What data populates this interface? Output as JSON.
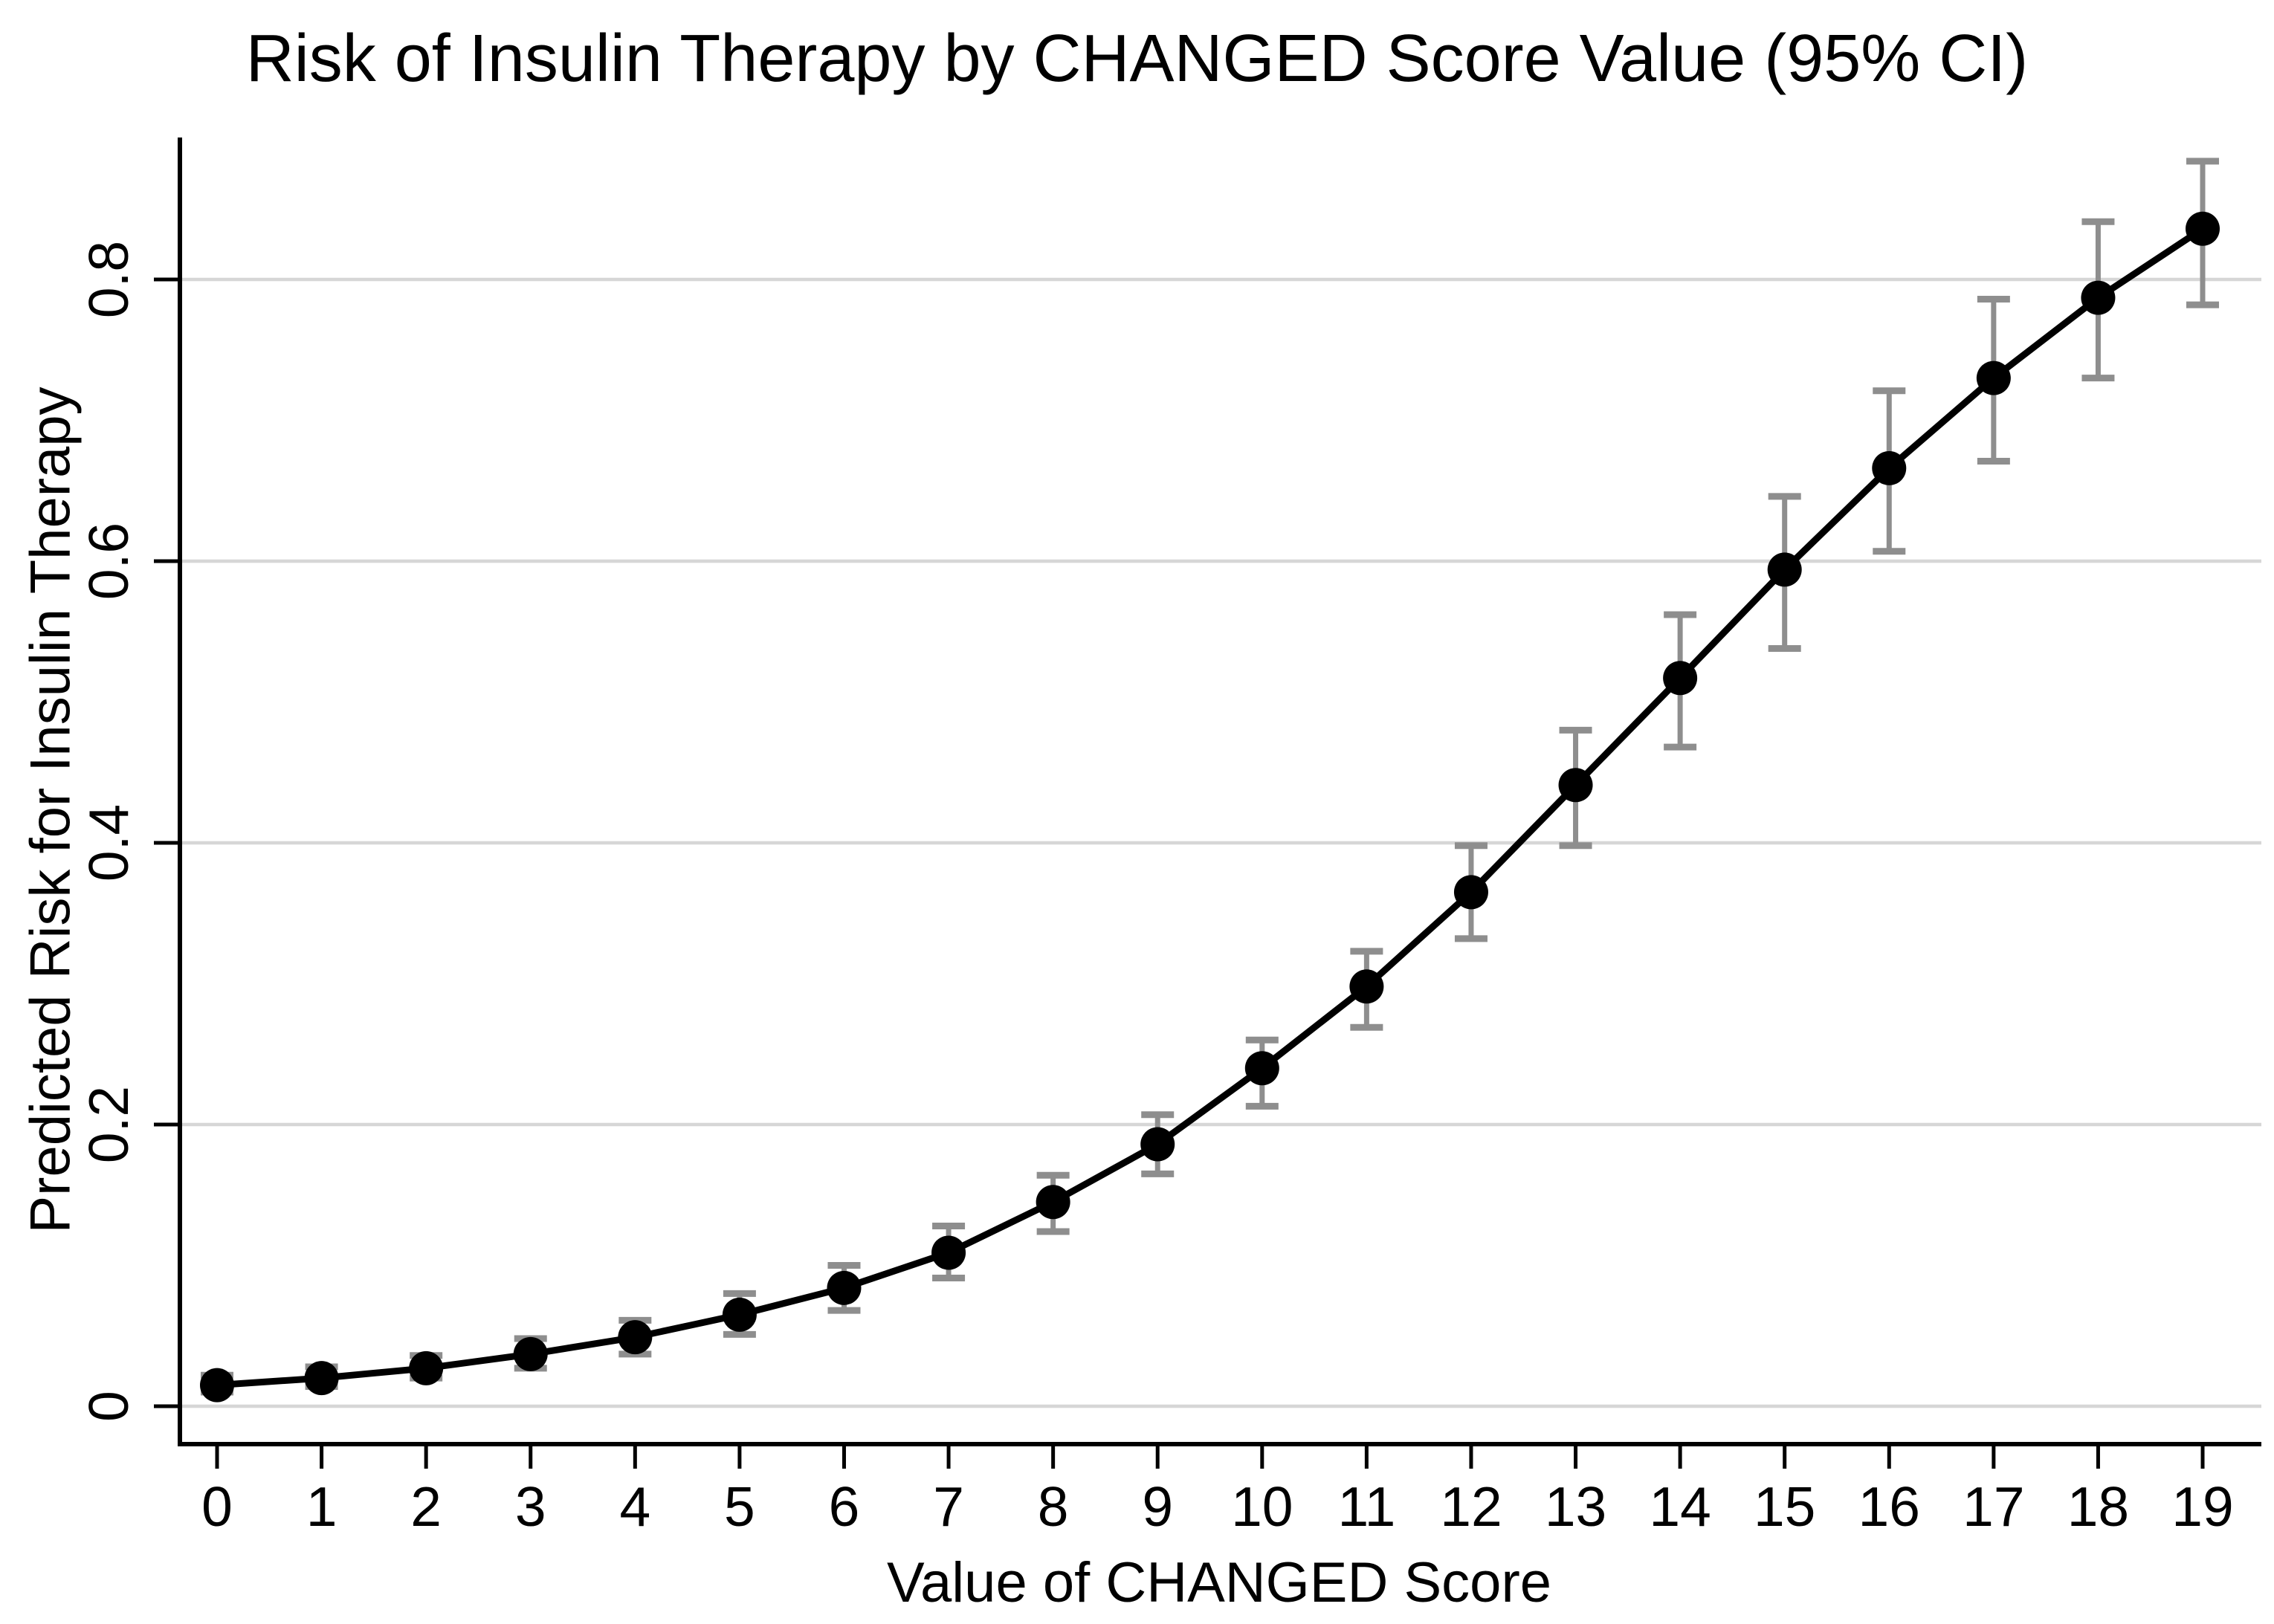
{
  "figure": {
    "title": "Risk of Insulin Therapy by CHANGED Score Value (95% CI)",
    "x_axis_label": "Value of CHANGED Score",
    "y_axis_label": "Predicted Risk for Insulin Therapy"
  },
  "chart_data": {
    "type": "line",
    "title": "Risk of Insulin Therapy by CHANGED Score Value (95% CI)",
    "xlabel": "Value of CHANGED Score",
    "ylabel": "Predicted Risk for Insulin Therapy",
    "categories": [
      0,
      1,
      2,
      3,
      4,
      5,
      6,
      7,
      8,
      9,
      10,
      11,
      12,
      13,
      14,
      15,
      16,
      17,
      18,
      19
    ],
    "x_tick_labels": [
      "0",
      "1",
      "2",
      "3",
      "4",
      "5",
      "6",
      "7",
      "8",
      "9",
      "10",
      "11",
      "12",
      "13",
      "14",
      "15",
      "16",
      "17",
      "18",
      "19"
    ],
    "y_ticks": [
      0,
      0.2,
      0.4,
      0.6,
      0.8
    ],
    "y_tick_labels": [
      "0",
      "0.2",
      "0.4",
      "0.6",
      "0.8"
    ],
    "ylim": [
      -0.06,
      0.9
    ],
    "grid": "horizontal-only",
    "legend_position": "none",
    "marker": "filled-circle",
    "error_bars": "95% confidence interval",
    "series": [
      {
        "name": "Predicted risk",
        "values": [
          0.015,
          0.02,
          0.027,
          0.037,
          0.049,
          0.065,
          0.084,
          0.109,
          0.145,
          0.186,
          0.24,
          0.298,
          0.365,
          0.441,
          0.517,
          0.594,
          0.666,
          0.73,
          0.787,
          0.836
        ]
      },
      {
        "name": "95% CI lower bound",
        "values": [
          0.01,
          0.014,
          0.02,
          0.027,
          0.037,
          0.051,
          0.068,
          0.091,
          0.124,
          0.165,
          0.213,
          0.269,
          0.332,
          0.398,
          0.468,
          0.538,
          0.607,
          0.671,
          0.73,
          0.782
        ]
      },
      {
        "name": "95% CI upper bound",
        "values": [
          0.022,
          0.028,
          0.036,
          0.048,
          0.061,
          0.08,
          0.1,
          0.128,
          0.164,
          0.207,
          0.26,
          0.323,
          0.398,
          0.48,
          0.562,
          0.646,
          0.721,
          0.786,
          0.841,
          0.884
        ]
      }
    ],
    "colors": {
      "line": "#000000",
      "marker": "#000000",
      "error_bar": "#8e8e8e",
      "gridline": "#d6d6d6",
      "axis": "#000000",
      "background": "#ffffff",
      "text": "#000000"
    }
  }
}
